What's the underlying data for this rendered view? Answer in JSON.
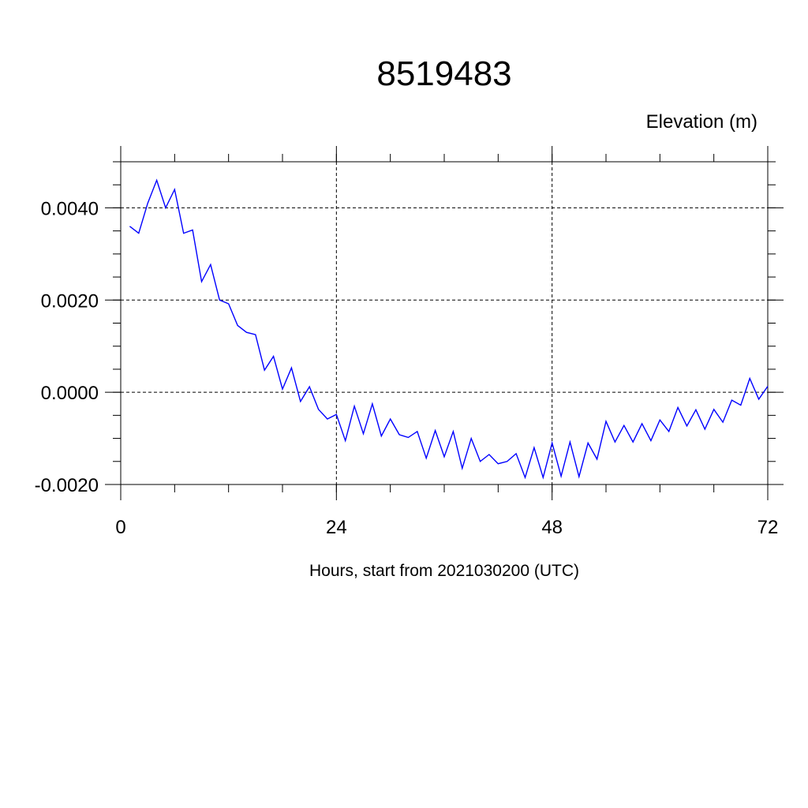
{
  "chart_data": {
    "type": "line",
    "title": "8519483",
    "ylabel": "Elevation (m)",
    "xlabel": "Hours, start from 2021030200 (UTC)",
    "xlim": [
      0,
      72
    ],
    "ylim": [
      -0.002,
      0.005
    ],
    "x_ticks": [
      0,
      24,
      48,
      72
    ],
    "x_tick_labels": [
      "0",
      "24",
      "48",
      "72"
    ],
    "y_ticks": [
      0.004,
      0.002,
      0.0,
      -0.002
    ],
    "y_tick_labels": [
      "0.0040",
      "0.0020",
      "0.0000",
      "-0.0020"
    ],
    "grid": true,
    "series": [
      {
        "color": "#0000ff",
        "x": [
          1,
          2,
          3,
          4,
          5,
          6,
          7,
          8,
          9,
          10,
          11,
          12,
          13,
          14,
          15,
          16,
          17,
          18,
          19,
          20,
          21,
          22,
          23,
          24,
          25,
          26,
          27,
          28,
          29,
          30,
          31,
          32,
          33,
          34,
          35,
          36,
          37,
          38,
          39,
          40,
          41,
          42,
          43,
          44,
          45,
          46,
          47,
          48,
          49,
          50,
          51,
          52,
          53,
          54,
          55,
          56,
          57,
          58,
          59,
          60,
          61,
          62,
          63,
          64,
          65,
          66,
          67,
          68,
          69,
          70,
          71,
          72
        ],
        "values": [
          0.0036,
          0.00345,
          0.0041,
          0.0046,
          0.004,
          0.0044,
          0.00345,
          0.00352,
          0.0024,
          0.00277,
          0.002,
          0.00192,
          0.00145,
          0.0013,
          0.00125,
          0.00048,
          0.00078,
          7e-05,
          0.00053,
          -0.0002,
          0.00012,
          -0.00037,
          -0.00058,
          -0.00048,
          -0.00105,
          -0.0003,
          -0.0009,
          -0.00025,
          -0.00095,
          -0.00058,
          -0.00092,
          -0.00098,
          -0.00085,
          -0.00143,
          -0.00083,
          -0.0014,
          -0.00085,
          -0.00165,
          -0.001,
          -0.0015,
          -0.00135,
          -0.00155,
          -0.0015,
          -0.00133,
          -0.00185,
          -0.0012,
          -0.00185,
          -0.0011,
          -0.00182,
          -0.00108,
          -0.00183,
          -0.0011,
          -0.00145,
          -0.00063,
          -0.00108,
          -0.00072,
          -0.00108,
          -0.00068,
          -0.00105,
          -0.0006,
          -0.00085,
          -0.00033,
          -0.00073,
          -0.00038,
          -0.0008,
          -0.00037,
          -0.00065,
          -0.00017,
          -0.00028,
          0.0003,
          -0.00015,
          0.00013
        ]
      }
    ]
  }
}
